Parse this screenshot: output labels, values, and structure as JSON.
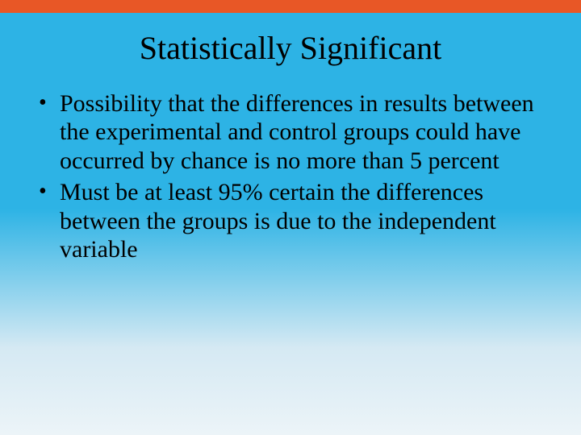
{
  "slide": {
    "title": "Statistically Significant",
    "bullets": [
      "Possibility that the differences in results between the experimental and control groups could have occurred by chance is no more than 5 percent",
      "Must be at least 95% certain the differences between the groups is due to the independent variable"
    ],
    "colors": {
      "top_bar": "#e85726",
      "gradient_top": "#2db3e5",
      "gradient_bottom": "#ecf4f8",
      "text": "#000000"
    },
    "typography": {
      "title_fontsize": 40,
      "body_fontsize": 30,
      "font_family": "Times New Roman"
    }
  }
}
